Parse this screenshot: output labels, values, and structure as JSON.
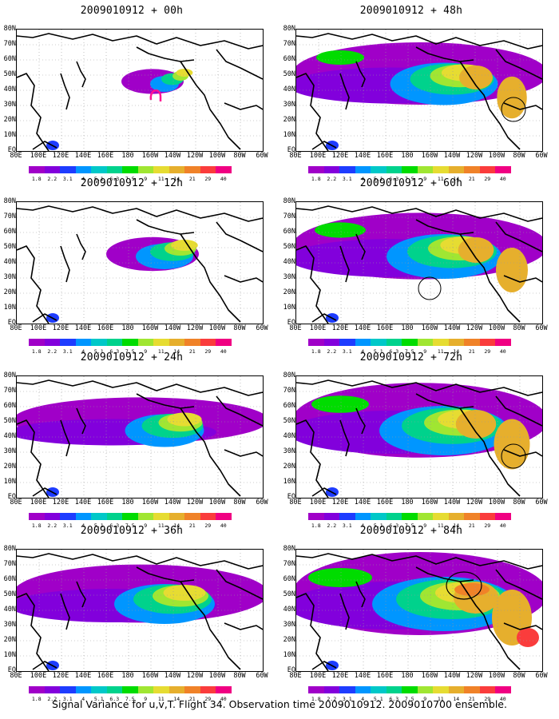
{
  "panels": [
    {
      "title": "2009010912 + 00h",
      "col": 0,
      "row": 0,
      "level": 0.2,
      "marker": "pink-loop"
    },
    {
      "title": "2009010912 + 12h",
      "col": 0,
      "row": 1,
      "level": 0.4,
      "marker": ""
    },
    {
      "title": "2009010912 + 24h",
      "col": 0,
      "row": 2,
      "level": 0.55,
      "marker": ""
    },
    {
      "title": "2009010912 + 36h",
      "col": 0,
      "row": 3,
      "level": 0.7,
      "marker": ""
    },
    {
      "title": "2009010912 + 48h",
      "col": 1,
      "row": 0,
      "level": 0.75,
      "marker": "circle-east"
    },
    {
      "title": "2009010912 + 60h",
      "col": 1,
      "row": 1,
      "level": 0.8,
      "marker": "circle-mid"
    },
    {
      "title": "2009010912 + 72h",
      "col": 1,
      "row": 2,
      "level": 0.9,
      "marker": "circle-east"
    },
    {
      "title": "2009010912 + 84h",
      "col": 1,
      "row": 3,
      "level": 1.0,
      "marker": "circle-north"
    }
  ],
  "latitude_labels": [
    "80N",
    "70N",
    "60N",
    "50N",
    "40N",
    "30N",
    "20N",
    "10N",
    "EQ"
  ],
  "longitude_labels": [
    "80E",
    "100E",
    "120E",
    "140E",
    "160E",
    "180",
    "160W",
    "140W",
    "120W",
    "100W",
    "80W",
    "60W"
  ],
  "colorbar": {
    "labels": [
      "1.8",
      "2.2",
      "3.1",
      "4",
      "5.1",
      "6.3",
      "7.5",
      "9",
      "11",
      "14",
      "21",
      "29",
      "40"
    ],
    "colors": [
      "#a000c8",
      "#8200dc",
      "#1e3cff",
      "#0096ff",
      "#00c8c8",
      "#00d28c",
      "#00dc00",
      "#a0e632",
      "#e6dc32",
      "#e6af2d",
      "#f08228",
      "#fa3c3c",
      "#f00082"
    ]
  },
  "caption": "Signal Variance for u,v,T. Flight 34. Observation time 2009010912. 2009010700 ensemble."
}
